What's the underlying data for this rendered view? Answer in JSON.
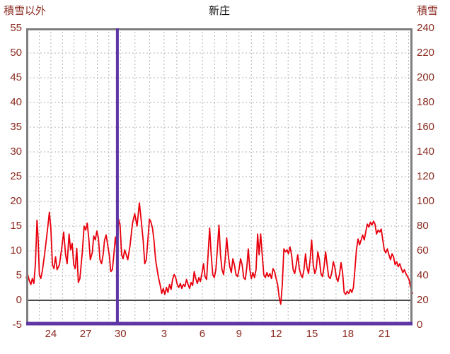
{
  "header": {
    "left_label": "積雪以外",
    "title": "新庄",
    "right_label": "積雪"
  },
  "colors": {
    "series_red": "#e8000d",
    "series_purple": "#5d35a5",
    "frame_gray": "#7f7f7f",
    "grid_gray": "#b3b3b3",
    "zero_line": "#4a4a4a",
    "tick_text": "#8a2b20",
    "title_text": "#111111",
    "background": "#ffffff"
  },
  "chart_data": {
    "type": "line",
    "title": "新庄",
    "xlabel": "",
    "ylabel_left": "積雪以外",
    "ylabel_right": "積雪",
    "grid": true,
    "left_axis": {
      "label": "積雪以外",
      "min": -5,
      "max": 55,
      "tick_step": 5,
      "ticks": [
        55,
        50,
        45,
        40,
        35,
        30,
        25,
        20,
        15,
        10,
        5,
        0,
        -5
      ]
    },
    "right_axis": {
      "label": "積雪",
      "min": 0,
      "max": 240,
      "tick_step": 20,
      "ticks": [
        240,
        220,
        200,
        180,
        160,
        140,
        120,
        100,
        80,
        60,
        40,
        20,
        0
      ]
    },
    "x_axis": {
      "ticks": [
        {
          "label": "24",
          "f": 0.064
        },
        {
          "label": "27",
          "f": 0.154
        },
        {
          "label": "30",
          "f": 0.244
        },
        {
          "label": "3",
          "f": 0.357
        },
        {
          "label": "6",
          "f": 0.456
        },
        {
          "label": "9",
          "f": 0.551
        },
        {
          "label": "12",
          "f": 0.647
        },
        {
          "label": "15",
          "f": 0.74
        },
        {
          "label": "18",
          "f": 0.833
        },
        {
          "label": "21",
          "f": 0.927
        }
      ]
    },
    "zero_line_value": 0,
    "event_line": {
      "f": 0.236,
      "color": "#5d35a5"
    },
    "series": [
      {
        "name": "積雪以外",
        "color": "#e8000d",
        "axis": "left",
        "points": [
          [
            0.0,
            4.6
          ],
          [
            0.004,
            5.2
          ],
          [
            0.008,
            4.0
          ],
          [
            0.012,
            3.2
          ],
          [
            0.016,
            4.4
          ],
          [
            0.02,
            3.4
          ],
          [
            0.024,
            7.5
          ],
          [
            0.028,
            16.2
          ],
          [
            0.031,
            12.5
          ],
          [
            0.034,
            5.2
          ],
          [
            0.038,
            4.4
          ],
          [
            0.042,
            6.0
          ],
          [
            0.048,
            9.5
          ],
          [
            0.054,
            13.5
          ],
          [
            0.06,
            17.8
          ],
          [
            0.064,
            14.5
          ],
          [
            0.068,
            7.2
          ],
          [
            0.072,
            6.4
          ],
          [
            0.076,
            8.8
          ],
          [
            0.08,
            6.2
          ],
          [
            0.086,
            7.2
          ],
          [
            0.092,
            10.5
          ],
          [
            0.097,
            13.8
          ],
          [
            0.102,
            9.2
          ],
          [
            0.106,
            7.4
          ],
          [
            0.111,
            13.4
          ],
          [
            0.115,
            10.2
          ],
          [
            0.119,
            11.5
          ],
          [
            0.123,
            7.2
          ],
          [
            0.127,
            6.4
          ],
          [
            0.131,
            10.5
          ],
          [
            0.135,
            3.6
          ],
          [
            0.139,
            4.4
          ],
          [
            0.145,
            9.5
          ],
          [
            0.15,
            15.0
          ],
          [
            0.154,
            14.2
          ],
          [
            0.158,
            15.6
          ],
          [
            0.162,
            12.5
          ],
          [
            0.166,
            8.2
          ],
          [
            0.171,
            9.6
          ],
          [
            0.175,
            13.0
          ],
          [
            0.179,
            12.2
          ],
          [
            0.183,
            14.0
          ],
          [
            0.187,
            12.6
          ],
          [
            0.191,
            8.2
          ],
          [
            0.195,
            7.4
          ],
          [
            0.199,
            9.2
          ],
          [
            0.203,
            12.2
          ],
          [
            0.207,
            13.2
          ],
          [
            0.211,
            11.2
          ],
          [
            0.215,
            9.2
          ],
          [
            0.219,
            5.8
          ],
          [
            0.223,
            6.2
          ],
          [
            0.227,
            9.2
          ],
          [
            0.231,
            12.8
          ],
          [
            0.235,
            10.2
          ],
          [
            0.239,
            16.4
          ],
          [
            0.243,
            15.2
          ],
          [
            0.247,
            9.2
          ],
          [
            0.251,
            8.4
          ],
          [
            0.255,
            10.2
          ],
          [
            0.259,
            9.2
          ],
          [
            0.263,
            8.2
          ],
          [
            0.269,
            11.2
          ],
          [
            0.275,
            15.5
          ],
          [
            0.281,
            17.5
          ],
          [
            0.287,
            15.0
          ],
          [
            0.293,
            19.7
          ],
          [
            0.298,
            16.0
          ],
          [
            0.303,
            12.0
          ],
          [
            0.307,
            7.4
          ],
          [
            0.311,
            8.2
          ],
          [
            0.315,
            12.2
          ],
          [
            0.319,
            16.4
          ],
          [
            0.323,
            15.8
          ],
          [
            0.327,
            14.6
          ],
          [
            0.331,
            12.0
          ],
          [
            0.335,
            8.2
          ],
          [
            0.339,
            6.2
          ],
          [
            0.343,
            4.4
          ],
          [
            0.347,
            3.0
          ],
          [
            0.351,
            1.4
          ],
          [
            0.355,
            2.4
          ],
          [
            0.359,
            1.2
          ],
          [
            0.363,
            2.6
          ],
          [
            0.367,
            1.6
          ],
          [
            0.371,
            3.2
          ],
          [
            0.375,
            2.2
          ],
          [
            0.379,
            4.2
          ],
          [
            0.383,
            5.2
          ],
          [
            0.387,
            4.6
          ],
          [
            0.391,
            3.2
          ],
          [
            0.395,
            2.6
          ],
          [
            0.399,
            3.4
          ],
          [
            0.403,
            2.4
          ],
          [
            0.407,
            3.2
          ],
          [
            0.411,
            2.8
          ],
          [
            0.415,
            4.2
          ],
          [
            0.419,
            3.2
          ],
          [
            0.423,
            2.4
          ],
          [
            0.427,
            3.6
          ],
          [
            0.431,
            3.0
          ],
          [
            0.435,
            5.8
          ],
          [
            0.439,
            4.4
          ],
          [
            0.443,
            3.4
          ],
          [
            0.447,
            4.6
          ],
          [
            0.451,
            3.8
          ],
          [
            0.455,
            5.4
          ],
          [
            0.459,
            7.4
          ],
          [
            0.463,
            4.8
          ],
          [
            0.467,
            4.2
          ],
          [
            0.471,
            9.5
          ],
          [
            0.475,
            14.6
          ],
          [
            0.479,
            9.2
          ],
          [
            0.483,
            5.2
          ],
          [
            0.487,
            4.6
          ],
          [
            0.491,
            6.2
          ],
          [
            0.495,
            10.5
          ],
          [
            0.499,
            15.2
          ],
          [
            0.503,
            9.2
          ],
          [
            0.507,
            6.2
          ],
          [
            0.511,
            5.2
          ],
          [
            0.515,
            8.2
          ],
          [
            0.519,
            12.6
          ],
          [
            0.523,
            9.2
          ],
          [
            0.527,
            6.8
          ],
          [
            0.531,
            5.6
          ],
          [
            0.535,
            8.4
          ],
          [
            0.539,
            7.2
          ],
          [
            0.543,
            5.2
          ],
          [
            0.547,
            4.8
          ],
          [
            0.551,
            6.2
          ],
          [
            0.555,
            8.4
          ],
          [
            0.559,
            7.2
          ],
          [
            0.563,
            4.6
          ],
          [
            0.567,
            4.2
          ],
          [
            0.571,
            6.6
          ],
          [
            0.575,
            10.4
          ],
          [
            0.579,
            6.2
          ],
          [
            0.583,
            4.4
          ],
          [
            0.587,
            5.6
          ],
          [
            0.591,
            4.6
          ],
          [
            0.595,
            6.2
          ],
          [
            0.599,
            13.4
          ],
          [
            0.603,
            9.2
          ],
          [
            0.607,
            13.4
          ],
          [
            0.611,
            9.2
          ],
          [
            0.615,
            5.2
          ],
          [
            0.619,
            4.6
          ],
          [
            0.623,
            5.6
          ],
          [
            0.627,
            4.8
          ],
          [
            0.631,
            5.4
          ],
          [
            0.635,
            4.4
          ],
          [
            0.639,
            6.4
          ],
          [
            0.643,
            5.8
          ],
          [
            0.647,
            4.4
          ],
          [
            0.651,
            3.2
          ],
          [
            0.655,
            0.6
          ],
          [
            0.659,
            -0.8
          ],
          [
            0.663,
            3.2
          ],
          [
            0.667,
            10.4
          ],
          [
            0.671,
            9.8
          ],
          [
            0.675,
            10.2
          ],
          [
            0.679,
            9.4
          ],
          [
            0.683,
            10.8
          ],
          [
            0.687,
            9.2
          ],
          [
            0.691,
            6.2
          ],
          [
            0.695,
            5.4
          ],
          [
            0.699,
            7.2
          ],
          [
            0.703,
            9.2
          ],
          [
            0.707,
            6.4
          ],
          [
            0.711,
            5.2
          ],
          [
            0.715,
            4.6
          ],
          [
            0.719,
            6.2
          ],
          [
            0.723,
            9.4
          ],
          [
            0.727,
            6.6
          ],
          [
            0.731,
            5.4
          ],
          [
            0.735,
            8.2
          ],
          [
            0.739,
            12.2
          ],
          [
            0.743,
            7.2
          ],
          [
            0.747,
            5.4
          ],
          [
            0.751,
            6.4
          ],
          [
            0.755,
            9.8
          ],
          [
            0.759,
            8.2
          ],
          [
            0.763,
            5.4
          ],
          [
            0.767,
            4.8
          ],
          [
            0.771,
            6.8
          ],
          [
            0.775,
            9.8
          ],
          [
            0.779,
            7.2
          ],
          [
            0.783,
            4.8
          ],
          [
            0.787,
            4.4
          ],
          [
            0.791,
            5.6
          ],
          [
            0.795,
            7.8
          ],
          [
            0.799,
            6.6
          ],
          [
            0.803,
            4.6
          ],
          [
            0.807,
            3.8
          ],
          [
            0.811,
            5.2
          ],
          [
            0.815,
            7.6
          ],
          [
            0.819,
            5.6
          ],
          [
            0.823,
            1.6
          ],
          [
            0.827,
            1.2
          ],
          [
            0.831,
            1.8
          ],
          [
            0.835,
            1.4
          ],
          [
            0.839,
            2.2
          ],
          [
            0.843,
            1.6
          ],
          [
            0.847,
            2.6
          ],
          [
            0.851,
            6.2
          ],
          [
            0.855,
            10.2
          ],
          [
            0.859,
            12.4
          ],
          [
            0.863,
            11.2
          ],
          [
            0.867,
            12.2
          ],
          [
            0.871,
            13.2
          ],
          [
            0.875,
            12.2
          ],
          [
            0.879,
            13.8
          ],
          [
            0.883,
            15.4
          ],
          [
            0.887,
            14.8
          ],
          [
            0.891,
            15.8
          ],
          [
            0.895,
            15.2
          ],
          [
            0.899,
            16.0
          ],
          [
            0.903,
            15.4
          ],
          [
            0.907,
            13.4
          ],
          [
            0.911,
            14.2
          ],
          [
            0.915,
            13.8
          ],
          [
            0.919,
            14.4
          ],
          [
            0.923,
            12.2
          ],
          [
            0.927,
            10.2
          ],
          [
            0.931,
            9.6
          ],
          [
            0.935,
            10.4
          ],
          [
            0.939,
            9.2
          ],
          [
            0.943,
            8.2
          ],
          [
            0.947,
            9.4
          ],
          [
            0.951,
            8.8
          ],
          [
            0.955,
            7.2
          ],
          [
            0.959,
            7.8
          ],
          [
            0.963,
            6.8
          ],
          [
            0.967,
            7.4
          ],
          [
            0.971,
            6.4
          ],
          [
            0.975,
            5.6
          ],
          [
            0.979,
            6.2
          ],
          [
            0.983,
            5.4
          ],
          [
            0.987,
            4.8
          ],
          [
            0.991,
            4.2
          ],
          [
            0.995,
            2.6
          ],
          [
            1.0,
            1.4
          ]
        ]
      },
      {
        "name": "積雪",
        "color": "#5d35a5",
        "axis": "right",
        "constant_value": 0
      }
    ]
  }
}
